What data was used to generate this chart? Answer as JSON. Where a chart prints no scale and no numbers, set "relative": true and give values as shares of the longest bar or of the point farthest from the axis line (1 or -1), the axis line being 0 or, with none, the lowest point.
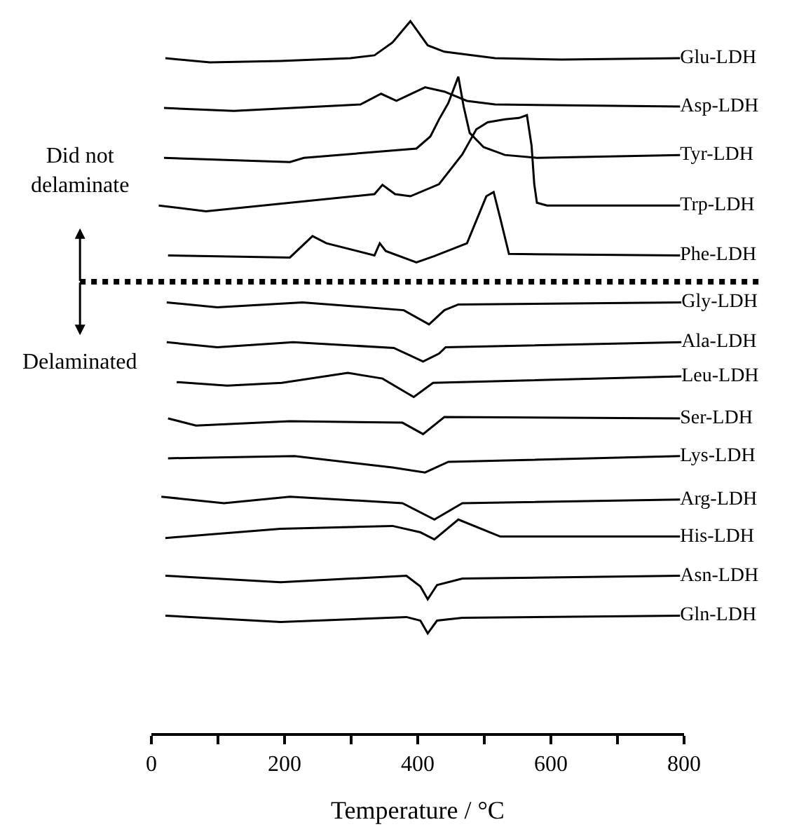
{
  "chart_data": {
    "type": "line",
    "relative": true,
    "xlabel": "Temperature / °C",
    "xlim": [
      0,
      800
    ],
    "xticks": [
      0,
      {
        "value": 100,
        "label": null
      },
      200,
      {
        "value": 300,
        "label": null
      },
      400,
      {
        "value": 500,
        "label": null
      },
      600,
      {
        "value": 700,
        "label": null
      },
      800
    ],
    "tick_labels": "x",
    "legend": false,
    "marker": "none",
    "line_style": "solid",
    "annotations": [
      "Did not\ndelaminate",
      "Delaminated"
    ],
    "ref_lines": [
      {
        "axis": "y",
        "value": 0.634,
        "label": null,
        "color": "#000000",
        "line_style": "dotted"
      }
    ],
    "series": [
      {
        "name": "Glu-LDH",
        "color": "#000000",
        "x": [
          21,
          88,
          194,
          299,
          335,
          362,
          389,
          415,
          440,
          516,
          615,
          794
        ],
        "values": [
          0.948,
          0.942,
          0.944,
          0.948,
          0.952,
          0.97,
          1.0,
          0.966,
          0.957,
          0.948,
          0.946,
          0.948
        ]
      },
      {
        "name": "Asp-LDH",
        "color": "#000000",
        "x": [
          19,
          124,
          314,
          345,
          368,
          411,
          440,
          474,
          516,
          794
        ],
        "values": [
          0.878,
          0.874,
          0.883,
          0.898,
          0.888,
          0.907,
          0.901,
          0.888,
          0.883,
          0.88
        ]
      },
      {
        "name": "Tyr-LDH",
        "color": "#000000",
        "x": [
          19,
          208,
          229,
          398,
          419,
          432,
          446,
          461,
          469,
          478,
          499,
          531,
          579,
          794
        ],
        "values": [
          0.808,
          0.802,
          0.808,
          0.821,
          0.838,
          0.862,
          0.885,
          0.922,
          0.88,
          0.843,
          0.823,
          0.812,
          0.808,
          0.812
        ]
      },
      {
        "name": "Trp-LDH",
        "color": "#000000",
        "x": [
          11,
          82,
          335,
          347,
          366,
          389,
          432,
          467,
          488,
          505,
          531,
          552,
          564,
          571,
          575,
          579,
          594,
          794
        ],
        "values": [
          0.741,
          0.733,
          0.757,
          0.77,
          0.757,
          0.754,
          0.771,
          0.813,
          0.848,
          0.858,
          0.862,
          0.864,
          0.868,
          0.825,
          0.771,
          0.745,
          0.741,
          0.741
        ]
      },
      {
        "name": "Phe-LDH",
        "color": "#000000",
        "x": [
          25,
          208,
          242,
          263,
          335,
          343,
          352,
          398,
          425,
          474,
          503,
          514,
          524,
          537,
          794
        ],
        "values": [
          0.671,
          0.668,
          0.698,
          0.688,
          0.671,
          0.688,
          0.677,
          0.661,
          0.67,
          0.688,
          0.754,
          0.76,
          0.723,
          0.673,
          0.671
        ]
      },
      {
        "name": "Gly-LDH",
        "color": "#000000",
        "x": [
          23,
          99,
          227,
          379,
          417,
          440,
          461,
          796
        ],
        "values": [
          0.605,
          0.598,
          0.605,
          0.594,
          0.574,
          0.594,
          0.602,
          0.605
        ]
      },
      {
        "name": "Ala-LDH",
        "color": "#000000",
        "x": [
          23,
          99,
          213,
          364,
          408,
          432,
          442,
          796
        ],
        "values": [
          0.549,
          0.542,
          0.549,
          0.541,
          0.522,
          0.533,
          0.542,
          0.549
        ]
      },
      {
        "name": "Leu-LDH",
        "color": "#000000",
        "x": [
          38,
          114,
          196,
          295,
          347,
          394,
          423,
          796
        ],
        "values": [
          0.493,
          0.488,
          0.492,
          0.506,
          0.498,
          0.472,
          0.492,
          0.501
        ]
      },
      {
        "name": "Ser-LDH",
        "color": "#000000",
        "x": [
          25,
          67,
          208,
          377,
          408,
          440,
          794
        ],
        "values": [
          0.442,
          0.432,
          0.438,
          0.436,
          0.42,
          0.444,
          0.442
        ]
      },
      {
        "name": "Lys-LDH",
        "color": "#000000",
        "x": [
          25,
          215,
          362,
          411,
          446,
          794
        ],
        "values": [
          0.386,
          0.389,
          0.373,
          0.366,
          0.381,
          0.389
        ]
      },
      {
        "name": "Arg-LDH",
        "color": "#000000",
        "x": [
          15,
          109,
          208,
          377,
          425,
          467,
          794
        ],
        "values": [
          0.332,
          0.323,
          0.332,
          0.323,
          0.3,
          0.323,
          0.328
        ]
      },
      {
        "name": "His-LDH",
        "color": "#000000",
        "x": [
          21,
          194,
          362,
          404,
          425,
          461,
          524,
          794
        ],
        "values": [
          0.274,
          0.287,
          0.291,
          0.282,
          0.272,
          0.3,
          0.276,
          0.276
        ]
      },
      {
        "name": "Asn-LDH",
        "color": "#000000",
        "x": [
          21,
          194,
          383,
          404,
          415,
          429,
          467,
          794
        ],
        "values": [
          0.221,
          0.212,
          0.221,
          0.206,
          0.188,
          0.208,
          0.217,
          0.221
        ]
      },
      {
        "name": "Gln-LDH",
        "color": "#000000",
        "x": [
          21,
          194,
          383,
          404,
          415,
          429,
          467,
          794
        ],
        "values": [
          0.165,
          0.156,
          0.163,
          0.158,
          0.14,
          0.158,
          0.162,
          0.165
        ]
      }
    ]
  }
}
